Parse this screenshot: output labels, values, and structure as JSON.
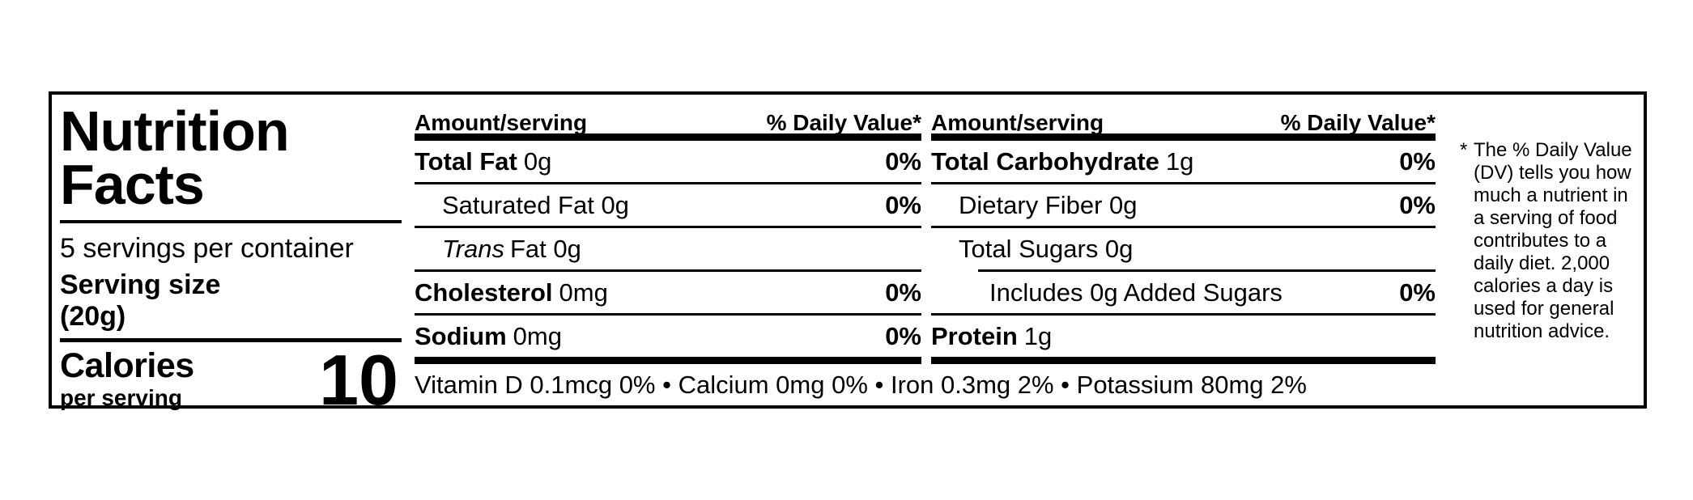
{
  "page": {
    "background_color": "#ffffff",
    "text_color": "#000000"
  },
  "label": {
    "title": {
      "line1": "Nutrition",
      "line2": "Facts"
    },
    "servings_per_container": "5 servings per container",
    "serving_size": {
      "label": "Serving size",
      "value": "(20g)"
    },
    "calories": {
      "label": "Calories",
      "sublabel": "per serving",
      "value": "10"
    }
  },
  "columns": [
    {
      "header": {
        "left": "Amount/serving",
        "right": "% Daily Value*"
      },
      "rows": [
        {
          "name": "Total Fat",
          "amount": "0g",
          "daily_value": "0%"
        },
        {
          "name": "Saturated Fat 0g",
          "amount": "",
          "daily_value": "0%"
        },
        {
          "name": "Trans",
          "rest": "Fat 0g",
          "daily_value": ""
        },
        {
          "name": "Cholesterol",
          "amount": "0mg",
          "daily_value": "0%"
        },
        {
          "name": "Sodium",
          "amount": "0mg",
          "daily_value": "0%"
        }
      ]
    },
    {
      "header": {
        "left": "Amount/serving",
        "right": "% Daily Value*"
      },
      "rows": [
        {
          "name": "Total Carbohydrate",
          "amount": "1g",
          "daily_value": "0%"
        },
        {
          "name": "Dietary Fiber 0g",
          "amount": "",
          "daily_value": "0%"
        },
        {
          "name": "Total Sugars 0g",
          "amount": "",
          "daily_value": ""
        },
        {
          "name": "Includes 0g Added Sugars",
          "amount": "",
          "daily_value": "0%"
        },
        {
          "name": "Protein",
          "amount": "1g",
          "daily_value": ""
        }
      ]
    }
  ],
  "micronutrients_line": "Vitamin D 0.1mcg 0% • Calcium 0mg 0% • Iron 0.3mg 2% • Potassium 80mg 2%",
  "footnote": {
    "star": "*",
    "lines": [
      "The % Daily Value",
      "(DV) tells you how",
      "much a nutrient in",
      "a serving of food",
      "contributes to a",
      "daily diet. 2,000",
      "calories a day is",
      "used for general",
      "nutrition advice."
    ]
  }
}
